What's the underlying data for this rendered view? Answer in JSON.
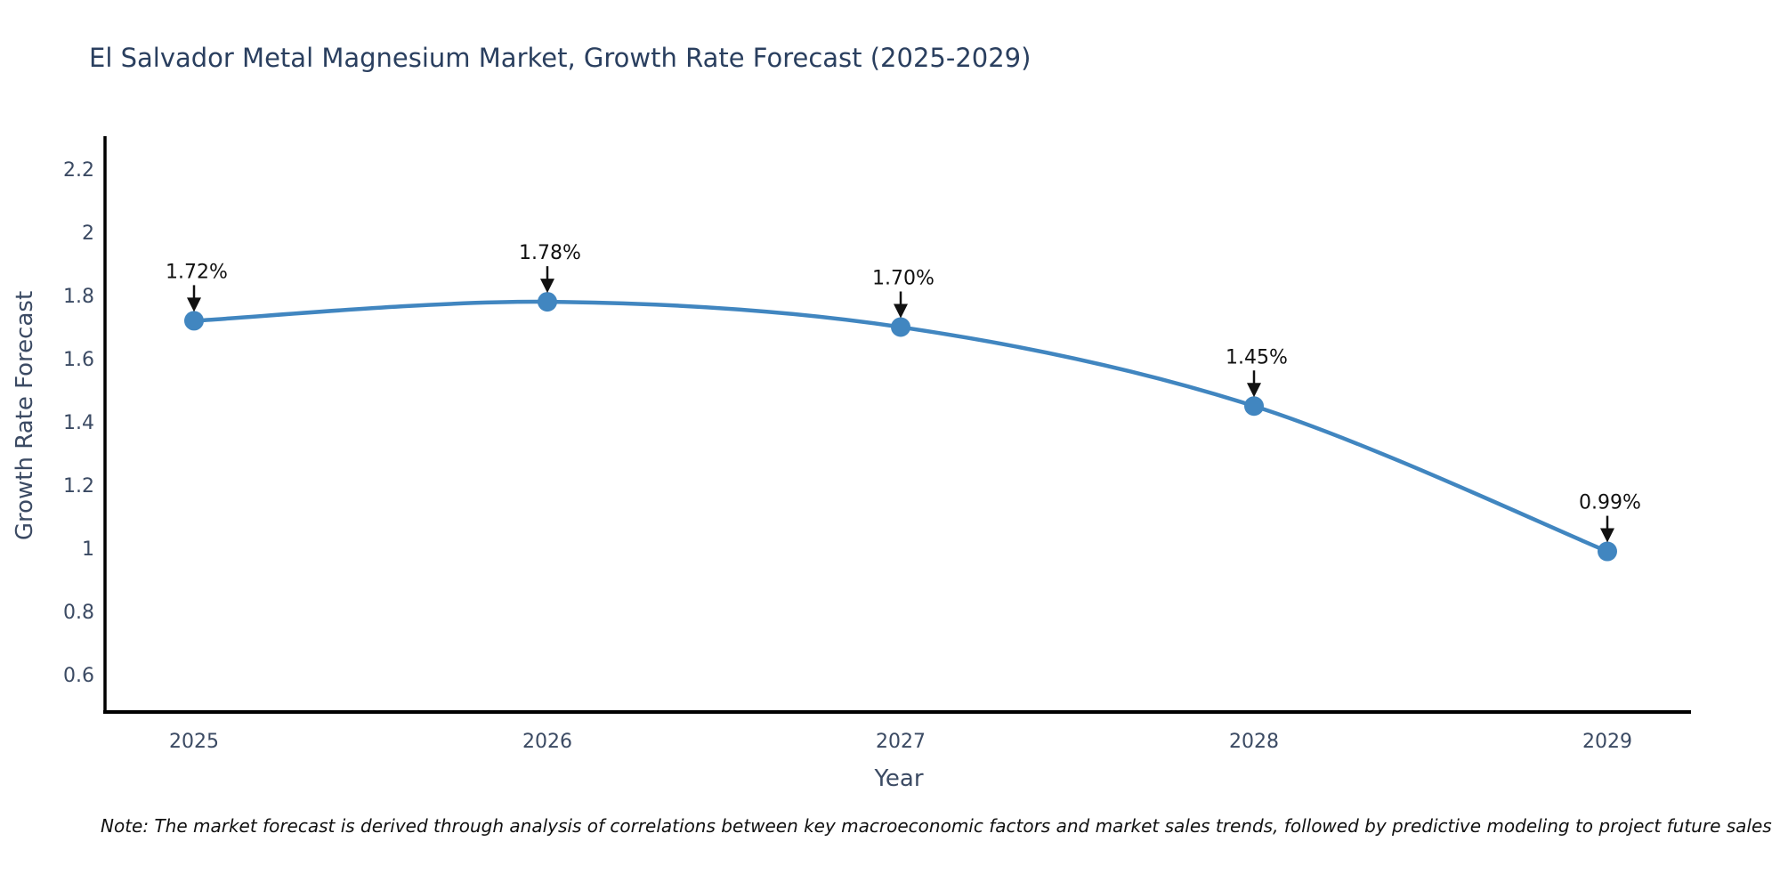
{
  "header": {
    "title": "El Salvador Metal Magnesium Market, Growth Rate Forecast (2025-2029)"
  },
  "footnote": "Note: The market forecast is derived through analysis of correlations between key macroeconomic factors and market sales trends, followed by predictive modeling to project future sales",
  "chart_data": {
    "type": "line",
    "title": "El Salvador Metal Magnesium Market, Growth Rate Forecast (2025-2029)",
    "xlabel": "Year",
    "ylabel": "Growth Rate Forecast",
    "x": [
      2025,
      2026,
      2027,
      2028,
      2029
    ],
    "values": [
      1.72,
      1.78,
      1.7,
      1.45,
      0.99
    ],
    "point_labels": [
      "1.72%",
      "1.78%",
      "1.70%",
      "1.45%",
      "0.99%"
    ],
    "xtick_labels": [
      "2025",
      "2026",
      "2027",
      "2028",
      "2029"
    ],
    "ytick_values": [
      0.6,
      0.8,
      1.0,
      1.2,
      1.4,
      1.6,
      1.8,
      2.0,
      2.2
    ],
    "ytick_labels": [
      "0.6",
      "0.8",
      "1",
      "1.2",
      "1.4",
      "1.6",
      "1.8",
      "2",
      "2.2"
    ],
    "ylim": [
      0.48,
      2.3
    ],
    "xlim_years": [
      2025,
      2029
    ],
    "grid": false,
    "legend_position": "none",
    "line_color": "#4186C0",
    "marker_color": "#4186C0",
    "axis_color": "#000000",
    "annotation_color": "#111111",
    "tick_color": "#3b4a63",
    "title_color": "#2a3f5f"
  }
}
